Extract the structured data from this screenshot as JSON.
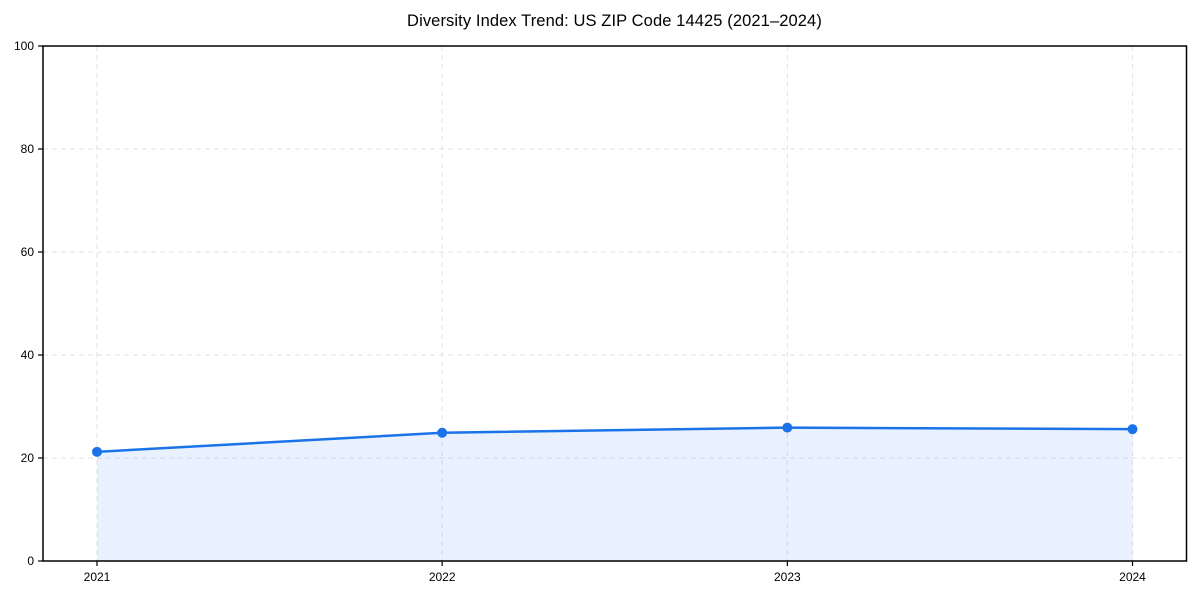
{
  "figure": {
    "background": "#ffffff"
  },
  "chart_data": {
    "type": "line",
    "title": "Diversity Index Trend: US ZIP Code 14425 (2021–2024)",
    "categories": [
      "2021",
      "2022",
      "2023",
      "2024"
    ],
    "x": [
      2021,
      2022,
      2023,
      2024
    ],
    "series": [
      {
        "name": "Diversity Index",
        "values": [
          21.2,
          24.9,
          25.9,
          25.6
        ]
      }
    ],
    "xlabel": "",
    "ylabel": "",
    "ylim": [
      0,
      100
    ],
    "yticks": [
      0,
      20,
      40,
      60,
      80,
      100
    ],
    "grid": true,
    "grid_style": "dashed",
    "legend_position": "none",
    "line_color": "#1a73e8",
    "marker": "circle",
    "marker_color": "#1a73e8",
    "area_fill": true,
    "fill_color": "#1a73e8",
    "fill_opacity": 0.1,
    "grid_color": "#e2e2e2",
    "spine_color": "#000000",
    "text_color": "#000000"
  }
}
